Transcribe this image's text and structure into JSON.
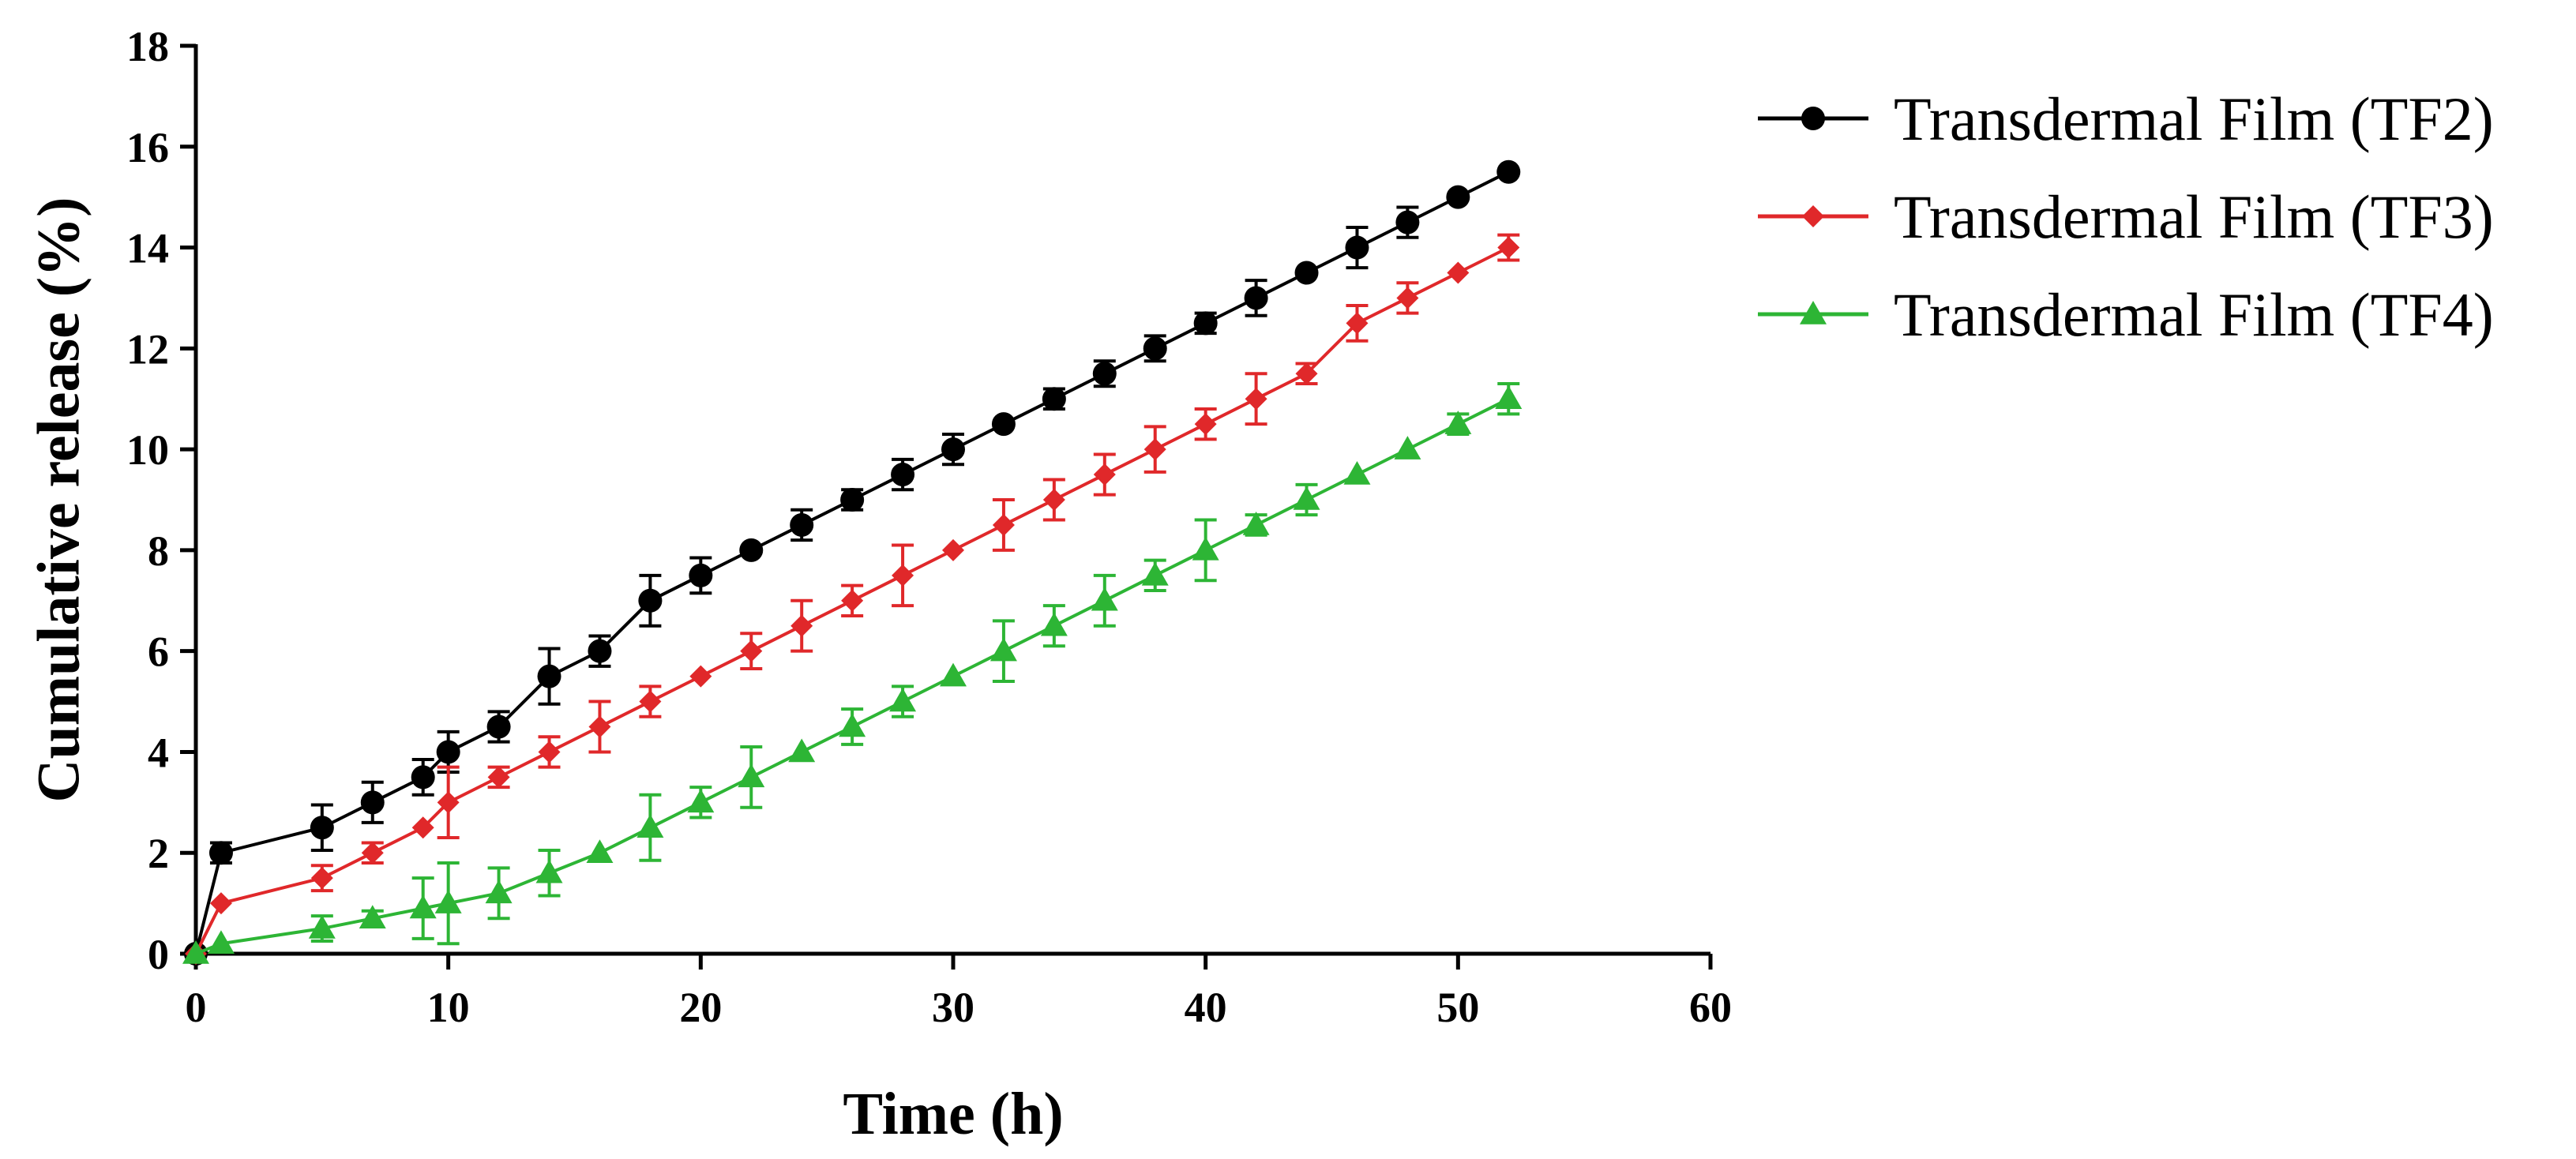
{
  "chart_data": {
    "type": "line",
    "title": "",
    "xlabel": "Time (h)",
    "ylabel": "Cumulative release (%)",
    "xlim": [
      0,
      60
    ],
    "ylim": [
      0,
      18
    ],
    "xticks": [
      0,
      10,
      20,
      30,
      40,
      50,
      60
    ],
    "yticks": [
      0,
      2,
      4,
      6,
      8,
      10,
      12,
      14,
      16,
      18
    ],
    "grid": false,
    "legend_position": "right",
    "series": [
      {
        "name": "Transdermal Film (TF2)",
        "color": "#000000",
        "marker": "circle",
        "x": [
          0,
          1,
          5,
          7,
          9,
          10,
          12,
          14,
          16,
          18,
          20,
          22,
          24,
          26,
          28,
          30,
          32,
          34,
          36,
          38,
          40,
          42,
          44,
          46,
          48,
          50,
          52
        ],
        "y": [
          0,
          2,
          2.5,
          3,
          3.5,
          4,
          4.5,
          5.5,
          6,
          7,
          7.5,
          8,
          8.5,
          9,
          9.5,
          10,
          10.5,
          11,
          11.5,
          12,
          12.5,
          13,
          13.5,
          14,
          14.5,
          15,
          15.5
        ],
        "err": [
          0,
          0.2,
          0.45,
          0.4,
          0.35,
          0.4,
          0.3,
          0.55,
          0.3,
          0.5,
          0.35,
          0,
          0.3,
          0.2,
          0.3,
          0.3,
          0,
          0.2,
          0.25,
          0.25,
          0.2,
          0.35,
          0,
          0.4,
          0.3,
          0,
          0
        ]
      },
      {
        "name": "Transdermal Film (TF3)",
        "color": "#e0282a",
        "marker": "diamond",
        "x": [
          0,
          1,
          5,
          7,
          9,
          10,
          12,
          14,
          16,
          18,
          20,
          22,
          24,
          26,
          28,
          30,
          32,
          34,
          36,
          38,
          40,
          42,
          44,
          46,
          48,
          50,
          52
        ],
        "y": [
          0,
          1,
          1.5,
          2,
          2.5,
          3,
          3.5,
          4,
          4.5,
          5,
          5.5,
          6,
          6.5,
          7,
          7.5,
          8,
          8.5,
          9,
          9.5,
          10,
          10.5,
          11,
          11.5,
          12.5,
          13,
          13.5,
          14
        ],
        "err": [
          0,
          0,
          0.25,
          0.2,
          0,
          0.7,
          0.2,
          0.3,
          0.5,
          0.3,
          0,
          0.35,
          0.5,
          0.3,
          0.6,
          0,
          0.5,
          0.4,
          0.4,
          0.45,
          0.3,
          0.5,
          0.2,
          0.35,
          0.3,
          0,
          0.25
        ]
      },
      {
        "name": "Transdermal Film (TF4)",
        "color": "#2db535",
        "marker": "triangle",
        "x": [
          0,
          1,
          5,
          7,
          9,
          10,
          12,
          14,
          16,
          18,
          20,
          22,
          24,
          26,
          28,
          30,
          32,
          34,
          36,
          38,
          40,
          42,
          44,
          46,
          48,
          50,
          52
        ],
        "y": [
          0,
          0.2,
          0.5,
          0.7,
          0.9,
          1,
          1.2,
          1.6,
          2,
          2.5,
          3,
          3.5,
          4,
          4.5,
          5,
          5.5,
          6,
          6.5,
          7,
          7.5,
          8,
          8.5,
          9,
          9.5,
          10,
          10.5,
          11
        ],
        "err": [
          0,
          0,
          0.25,
          0.15,
          0.6,
          0.8,
          0.5,
          0.45,
          0,
          0.65,
          0.3,
          0.6,
          0,
          0.35,
          0.3,
          0,
          0.6,
          0.4,
          0.5,
          0.3,
          0.6,
          0.2,
          0.3,
          0,
          0,
          0.2,
          0.3
        ]
      }
    ]
  }
}
